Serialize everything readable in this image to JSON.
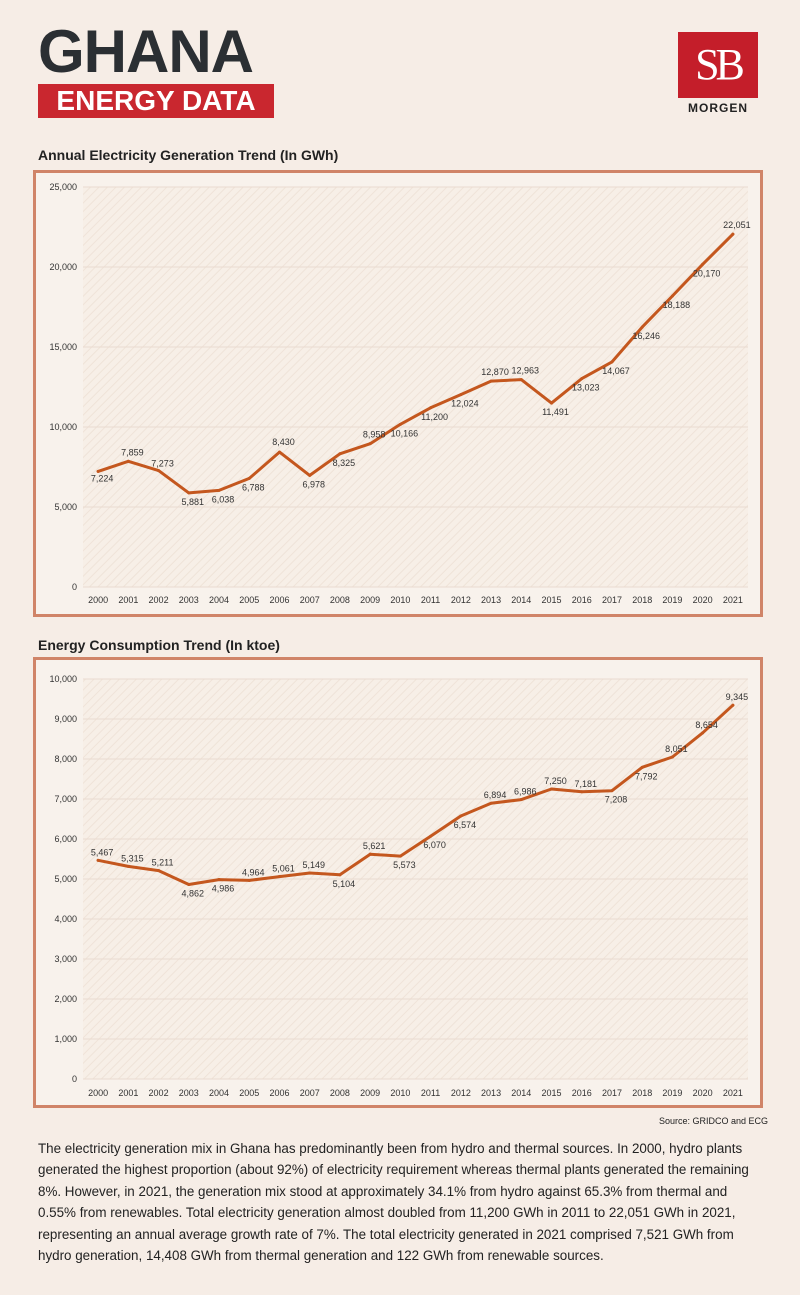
{
  "header": {
    "title": "GHANA",
    "subtitle": "ENERGY DATA",
    "logo_letters": "SB",
    "logo_text": "MORGEN"
  },
  "colors": {
    "accent": "#c9272f",
    "line": "#c4571e",
    "frame": "#d08468"
  },
  "chart_data": [
    {
      "type": "line",
      "title": "Annual Electricity Generation Trend (In GWh)",
      "xlabel": "",
      "ylabel": "",
      "categories": [
        "2000",
        "2001",
        "2002",
        "2003",
        "2004",
        "2005",
        "2006",
        "2007",
        "2008",
        "2009",
        "2010",
        "2011",
        "2012",
        "2013",
        "2014",
        "2015",
        "2016",
        "2017",
        "2018",
        "2019",
        "2020",
        "2021"
      ],
      "values": [
        7224,
        7859,
        7273,
        5881,
        6038,
        6788,
        8430,
        6978,
        8325,
        8958,
        10166,
        11200,
        12024,
        12870,
        12963,
        11491,
        13023,
        14067,
        16246,
        18188,
        20170,
        22051
      ],
      "labels": [
        "7,224",
        "7,859",
        "7,273",
        "5,881",
        "6,038",
        "6,788",
        "8,430",
        "6,978",
        "8,325",
        "8,958",
        "10,166",
        "11,200",
        "12,024",
        "12,870",
        "12,963",
        "11,491",
        "13,023",
        "14,067",
        "16,246",
        "18,188",
        "20,170",
        "22,051"
      ],
      "yticks": [
        "0",
        "5,000",
        "10,000",
        "15,000",
        "20,000",
        "25,000"
      ],
      "ylim": [
        0,
        25000
      ],
      "grid": true
    },
    {
      "type": "line",
      "title": "Energy Consumption Trend (In ktoe)",
      "xlabel": "",
      "ylabel": "",
      "categories": [
        "2000",
        "2001",
        "2002",
        "2003",
        "2004",
        "2005",
        "2006",
        "2007",
        "2008",
        "2009",
        "2010",
        "2011",
        "2012",
        "2013",
        "2014",
        "2015",
        "2016",
        "2017",
        "2018",
        "2019",
        "2020",
        "2021"
      ],
      "values": [
        5467,
        5315,
        5211,
        4862,
        4986,
        4964,
        5061,
        5149,
        5104,
        5621,
        5573,
        6070,
        6574,
        6894,
        6986,
        7250,
        7181,
        7208,
        7792,
        8051,
        8654,
        9345
      ],
      "labels": [
        "5,467",
        "5,315",
        "5,211",
        "4,862",
        "4,986",
        "4,964",
        "5,061",
        "5,149",
        "5,104",
        "5,621",
        "5,573",
        "6,070",
        "6,574",
        "6,894",
        "6,986",
        "7,250",
        "7,181",
        "7,208",
        "7,792",
        "8,051",
        "8,654",
        "9,345"
      ],
      "yticks": [
        "0",
        "1,000",
        "2,000",
        "3,000",
        "4,000",
        "5,000",
        "6,000",
        "7,000",
        "8,000",
        "9,000",
        "10,000"
      ],
      "ylim": [
        0,
        10000
      ],
      "grid": true
    }
  ],
  "source": "Source: GRIDCO and ECG",
  "paragraph": "The electricity generation mix in Ghana has predominantly been from hydro and thermal sources. In 2000, hydro plants generated the highest proportion (about 92%) of electricity requirement whereas thermal plants generated the remaining 8%. However, in 2021, the generation mix stood at approximately 34.1% from hydro against 65.3% from thermal and 0.55% from renewables. Total electricity generation almost doubled from 11,200 GWh in 2011 to 22,051 GWh in 2021, representing an annual average growth rate of 7%. The total electricity generated in 2021 comprised 7,521 GWh from hydro generation, 14,408 GWh from thermal generation and 122 GWh from renewable sources."
}
